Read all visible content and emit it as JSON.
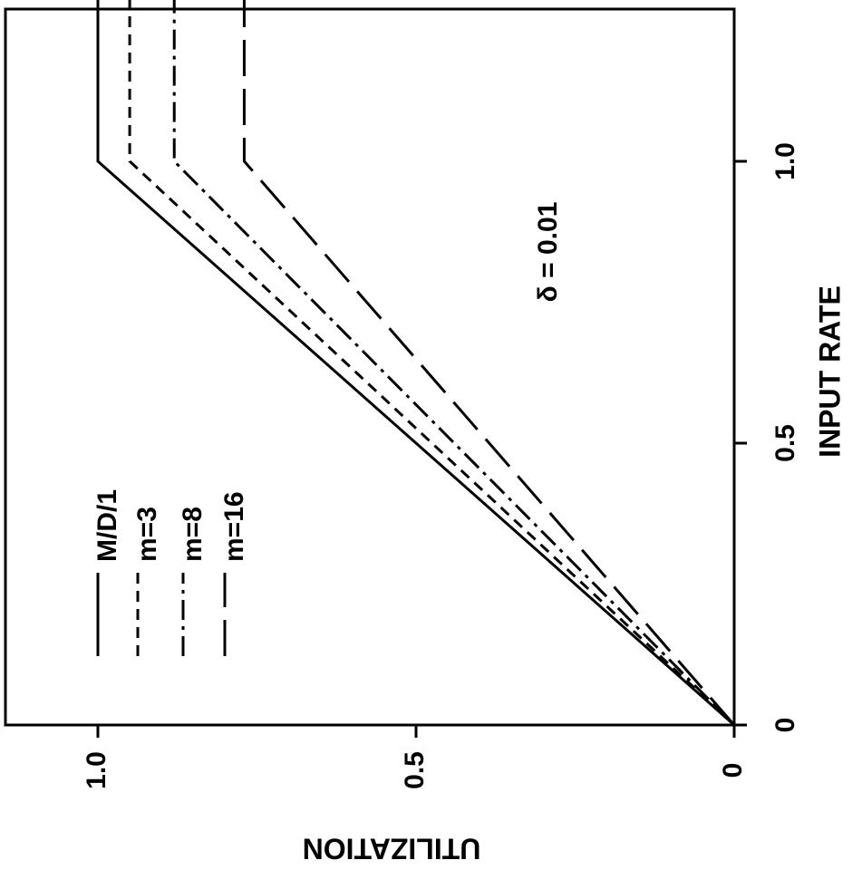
{
  "chart_data": {
    "type": "line",
    "orientation": "rotated-90-clockwise",
    "xlabel": "INPUT RATE",
    "ylabel": "UTILIZATION",
    "xlim": [
      0,
      1.3
    ],
    "ylim": [
      0,
      1.1
    ],
    "xticks": [
      {
        "value": 0,
        "label": "0"
      },
      {
        "value": 0.5,
        "label": "0.5"
      },
      {
        "value": 1.0,
        "label": "1.0"
      }
    ],
    "yticks": [
      {
        "value": 0,
        "label": "0"
      },
      {
        "value": 0.5,
        "label": "0.5"
      },
      {
        "value": 1.0,
        "label": "1.0"
      }
    ],
    "grid": false,
    "legend_position": "upper-left",
    "annotation": "δ = 0.01",
    "series": [
      {
        "name": "M/D/1",
        "style": "solid",
        "x": [
          0,
          1.0,
          1.3
        ],
        "y": [
          0,
          1.0,
          1.0
        ]
      },
      {
        "name": "m=3",
        "style": "dashed",
        "x": [
          0,
          1.0,
          1.3
        ],
        "y": [
          0,
          0.95,
          0.95
        ]
      },
      {
        "name": "m=8",
        "style": "dashdot",
        "x": [
          0,
          1.0,
          1.3
        ],
        "y": [
          0,
          0.88,
          0.88
        ]
      },
      {
        "name": "m=16",
        "style": "longdash",
        "x": [
          0,
          1.0,
          1.3
        ],
        "y": [
          0,
          0.77,
          0.77
        ]
      }
    ]
  },
  "styles": {
    "solid": "",
    "dashed": "12 8",
    "dashdot": "22 7 4 7",
    "longdash": "40 14"
  }
}
